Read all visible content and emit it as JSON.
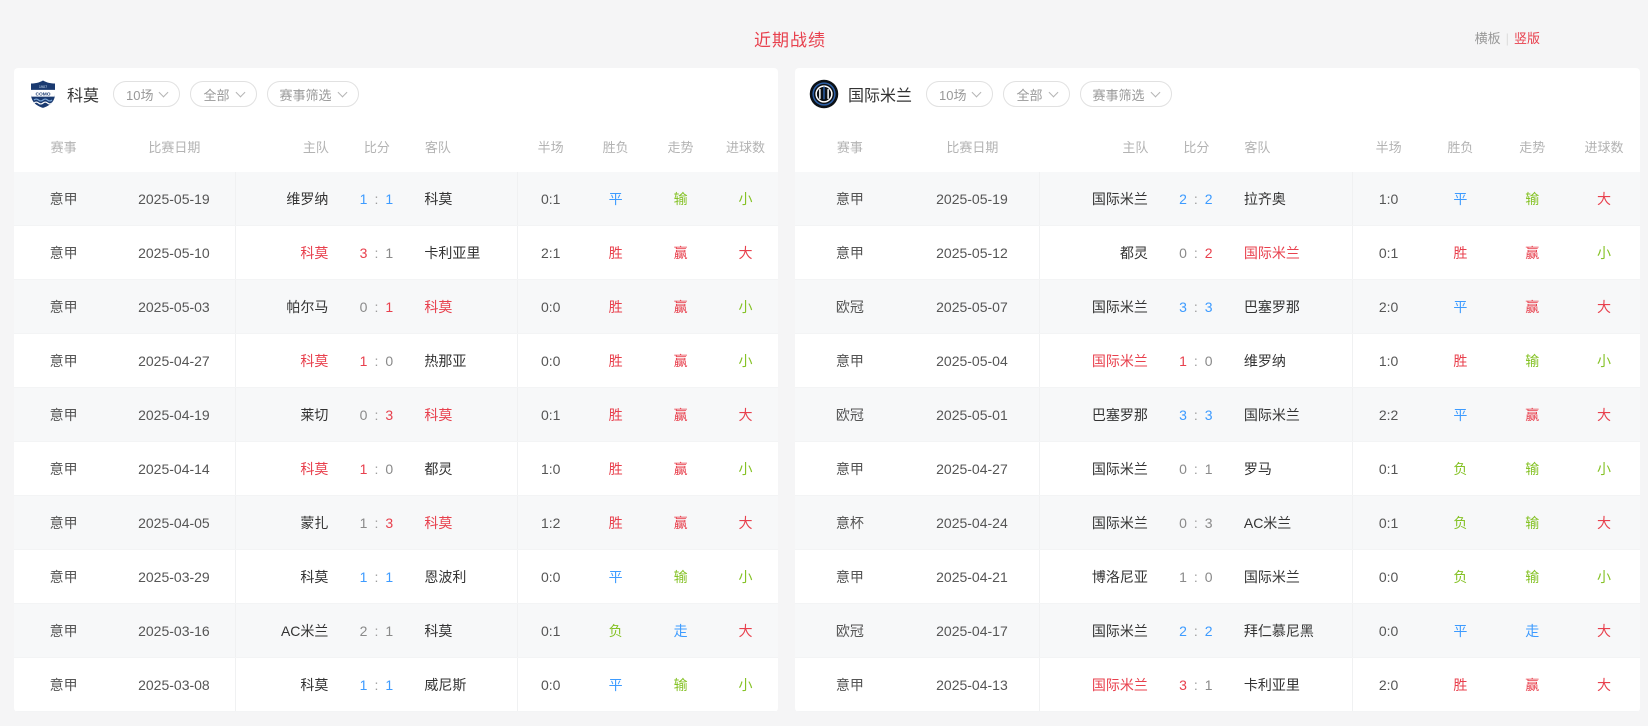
{
  "header": {
    "title": "近期战绩",
    "toggle": {
      "horizontal_label": "横板",
      "divider": "|",
      "vertical_label": "竖版"
    }
  },
  "filters": {
    "match_count": "10场",
    "scope": "全部",
    "event_filter": "赛事筛选"
  },
  "columns": {
    "event": "赛事",
    "date": "比赛日期",
    "home": "主队",
    "score": "比分",
    "away": "客队",
    "half": "半场",
    "result": "胜负",
    "trend": "走势",
    "goals": "进球数"
  },
  "colors": {
    "red": "#e8404d",
    "blue": "#3d9bff",
    "green": "#85c226",
    "gray_score": "#8a8a8a"
  },
  "color_rules": {
    "胜": "red",
    "平": "blue",
    "负": "green",
    "赢": "red",
    "走": "blue",
    "输": "green",
    "大": "red",
    "小": "green"
  },
  "panels": [
    {
      "team": "科莫",
      "logo_text": "COMO",
      "logo_year": "1907",
      "rows": [
        {
          "event": "意甲",
          "date": "2025-05-19",
          "home": "维罗纳",
          "hs": "1",
          "as": "1",
          "away": "科莫",
          "half": "0:1",
          "result": "平",
          "trend": "输",
          "goals": "小",
          "win_side": ""
        },
        {
          "event": "意甲",
          "date": "2025-05-10",
          "home": "科莫",
          "hs": "3",
          "as": "1",
          "away": "卡利亚里",
          "half": "2:1",
          "result": "胜",
          "trend": "赢",
          "goals": "大",
          "win_side": "home"
        },
        {
          "event": "意甲",
          "date": "2025-05-03",
          "home": "帕尔马",
          "hs": "0",
          "as": "1",
          "away": "科莫",
          "half": "0:0",
          "result": "胜",
          "trend": "赢",
          "goals": "小",
          "win_side": "away"
        },
        {
          "event": "意甲",
          "date": "2025-04-27",
          "home": "科莫",
          "hs": "1",
          "as": "0",
          "away": "热那亚",
          "half": "0:0",
          "result": "胜",
          "trend": "赢",
          "goals": "小",
          "win_side": "home"
        },
        {
          "event": "意甲",
          "date": "2025-04-19",
          "home": "莱切",
          "hs": "0",
          "as": "3",
          "away": "科莫",
          "half": "0:1",
          "result": "胜",
          "trend": "赢",
          "goals": "大",
          "win_side": "away"
        },
        {
          "event": "意甲",
          "date": "2025-04-14",
          "home": "科莫",
          "hs": "1",
          "as": "0",
          "away": "都灵",
          "half": "1:0",
          "result": "胜",
          "trend": "赢",
          "goals": "小",
          "win_side": "home"
        },
        {
          "event": "意甲",
          "date": "2025-04-05",
          "home": "蒙扎",
          "hs": "1",
          "as": "3",
          "away": "科莫",
          "half": "1:2",
          "result": "胜",
          "trend": "赢",
          "goals": "大",
          "win_side": "away"
        },
        {
          "event": "意甲",
          "date": "2025-03-29",
          "home": "科莫",
          "hs": "1",
          "as": "1",
          "away": "恩波利",
          "half": "0:0",
          "result": "平",
          "trend": "输",
          "goals": "小",
          "win_side": ""
        },
        {
          "event": "意甲",
          "date": "2025-03-16",
          "home": "AC米兰",
          "hs": "2",
          "as": "1",
          "away": "科莫",
          "half": "0:1",
          "result": "负",
          "trend": "走",
          "goals": "大",
          "win_side": ""
        },
        {
          "event": "意甲",
          "date": "2025-03-08",
          "home": "科莫",
          "hs": "1",
          "as": "1",
          "away": "威尼斯",
          "half": "0:0",
          "result": "平",
          "trend": "输",
          "goals": "小",
          "win_side": ""
        }
      ]
    },
    {
      "team": "国际米兰",
      "rows": [
        {
          "event": "意甲",
          "date": "2025-05-19",
          "home": "国际米兰",
          "hs": "2",
          "as": "2",
          "away": "拉齐奥",
          "half": "1:0",
          "result": "平",
          "trend": "输",
          "goals": "大",
          "win_side": ""
        },
        {
          "event": "意甲",
          "date": "2025-05-12",
          "home": "都灵",
          "hs": "0",
          "as": "2",
          "away": "国际米兰",
          "half": "0:1",
          "result": "胜",
          "trend": "赢",
          "goals": "小",
          "win_side": "away"
        },
        {
          "event": "欧冠",
          "date": "2025-05-07",
          "home": "国际米兰",
          "hs": "3",
          "as": "3",
          "away": "巴塞罗那",
          "half": "2:0",
          "result": "平",
          "trend": "赢",
          "goals": "大",
          "win_side": ""
        },
        {
          "event": "意甲",
          "date": "2025-05-04",
          "home": "国际米兰",
          "hs": "1",
          "as": "0",
          "away": "维罗纳",
          "half": "1:0",
          "result": "胜",
          "trend": "输",
          "goals": "小",
          "win_side": "home"
        },
        {
          "event": "欧冠",
          "date": "2025-05-01",
          "home": "巴塞罗那",
          "hs": "3",
          "as": "3",
          "away": "国际米兰",
          "half": "2:2",
          "result": "平",
          "trend": "赢",
          "goals": "大",
          "win_side": ""
        },
        {
          "event": "意甲",
          "date": "2025-04-27",
          "home": "国际米兰",
          "hs": "0",
          "as": "1",
          "away": "罗马",
          "half": "0:1",
          "result": "负",
          "trend": "输",
          "goals": "小",
          "win_side": ""
        },
        {
          "event": "意杯",
          "date": "2025-04-24",
          "home": "国际米兰",
          "hs": "0",
          "as": "3",
          "away": "AC米兰",
          "half": "0:1",
          "result": "负",
          "trend": "输",
          "goals": "大",
          "win_side": ""
        },
        {
          "event": "意甲",
          "date": "2025-04-21",
          "home": "博洛尼亚",
          "hs": "1",
          "as": "0",
          "away": "国际米兰",
          "half": "0:0",
          "result": "负",
          "trend": "输",
          "goals": "小",
          "win_side": ""
        },
        {
          "event": "欧冠",
          "date": "2025-04-17",
          "home": "国际米兰",
          "hs": "2",
          "as": "2",
          "away": "拜仁慕尼黑",
          "half": "0:0",
          "result": "平",
          "trend": "走",
          "goals": "大",
          "win_side": ""
        },
        {
          "event": "意甲",
          "date": "2025-04-13",
          "home": "国际米兰",
          "hs": "3",
          "as": "1",
          "away": "卡利亚里",
          "half": "2:0",
          "result": "胜",
          "trend": "赢",
          "goals": "大",
          "win_side": "home"
        }
      ]
    }
  ]
}
